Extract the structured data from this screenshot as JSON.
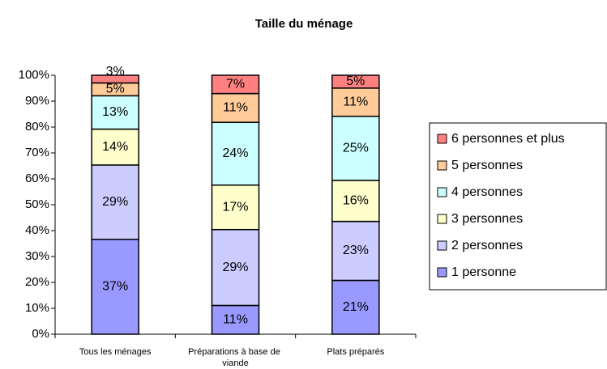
{
  "chart_data": {
    "type": "bar",
    "stacking": "percent",
    "title": "Taille du ménage",
    "categories": [
      "Tous les ménages",
      "Préparations à base de viande",
      "Plats préparés"
    ],
    "series": [
      {
        "name": "1 personne",
        "color": "#9999ff",
        "values": [
          37,
          11,
          21
        ],
        "value_labels": [
          "37%",
          "11%",
          "21%"
        ]
      },
      {
        "name": "2 personnes",
        "color": "#ccccff",
        "values": [
          29,
          29,
          23
        ],
        "value_labels": [
          "29%",
          "29%",
          "23%"
        ]
      },
      {
        "name": "3 personnes",
        "color": "#ffffcc",
        "values": [
          14,
          17,
          16
        ],
        "value_labels": [
          "14%",
          "17%",
          "16%"
        ]
      },
      {
        "name": "4 personnes",
        "color": "#ccffff",
        "values": [
          13,
          24,
          25
        ],
        "value_labels": [
          "13%",
          "24%",
          "25%"
        ]
      },
      {
        "name": "5 personnes",
        "color": "#ffcc99",
        "values": [
          5,
          11,
          11
        ],
        "value_labels": [
          "5%",
          "11%",
          "11%"
        ]
      },
      {
        "name": "6 personnes et plus",
        "color": "#ff8080",
        "values": [
          3,
          7,
          5
        ],
        "value_labels": [
          "3%",
          "7%",
          "5%"
        ]
      }
    ],
    "ylim": [
      0,
      100
    ],
    "yticks": [
      {
        "value": 0,
        "label": "0%"
      },
      {
        "value": 10,
        "label": "10%"
      },
      {
        "value": 20,
        "label": "20%"
      },
      {
        "value": 30,
        "label": "30%"
      },
      {
        "value": 40,
        "label": "40%"
      },
      {
        "value": 50,
        "label": "50%"
      },
      {
        "value": 60,
        "label": "60%"
      },
      {
        "value": 70,
        "label": "70%"
      },
      {
        "value": 80,
        "label": "80%"
      },
      {
        "value": 90,
        "label": "90%"
      },
      {
        "value": 100,
        "label": "100%"
      }
    ],
    "legend": "right"
  }
}
